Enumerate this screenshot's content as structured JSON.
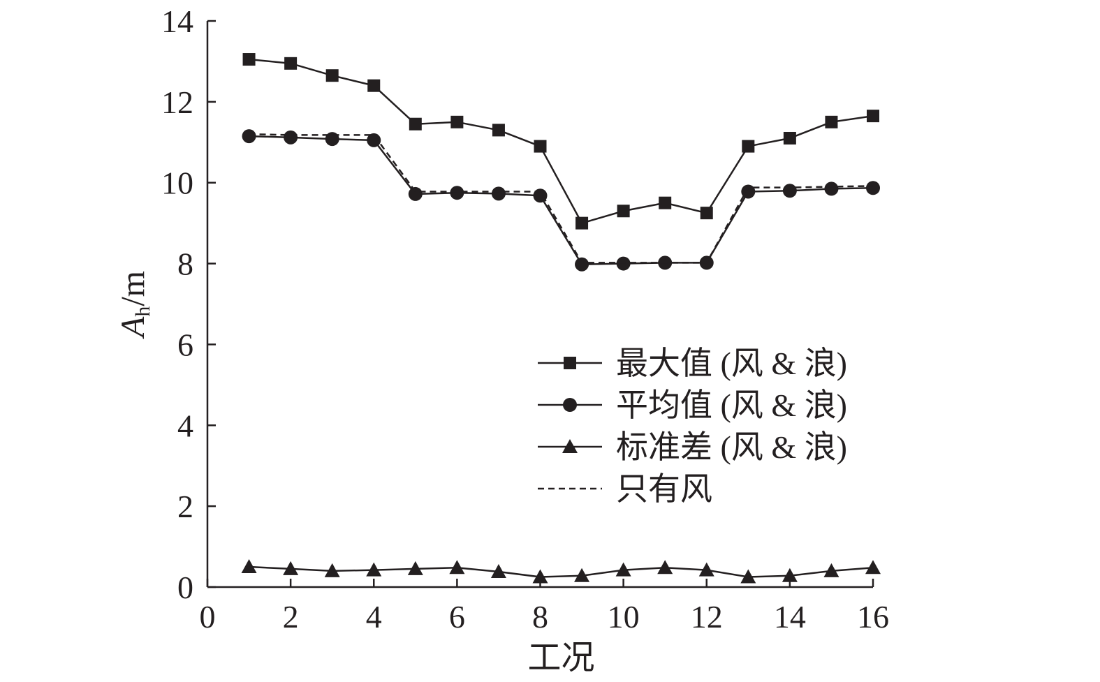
{
  "chart_data": {
    "type": "line",
    "xlabel": "工况",
    "ylabel": {
      "main": "A",
      "sub": "h",
      "unit": "/m"
    },
    "xlim": [
      0,
      16
    ],
    "ylim": [
      0,
      14
    ],
    "x_ticks": [
      0,
      2,
      4,
      6,
      8,
      10,
      12,
      14,
      16
    ],
    "y_ticks": [
      0,
      2,
      4,
      6,
      8,
      10,
      12,
      14
    ],
    "grid": false,
    "legend_position": "right-middle",
    "x": [
      1,
      2,
      3,
      4,
      5,
      6,
      7,
      8,
      9,
      10,
      11,
      12,
      13,
      14,
      15,
      16
    ],
    "series": [
      {
        "name": "最大值 (风 & 浪)",
        "marker": "square",
        "line": "solid",
        "values": [
          13.05,
          12.95,
          12.65,
          12.4,
          11.45,
          11.5,
          11.3,
          10.9,
          9.0,
          9.3,
          9.5,
          9.25,
          10.9,
          11.1,
          11.5,
          11.65
        ]
      },
      {
        "name": "平均值 (风 & 浪)",
        "marker": "circle",
        "line": "solid",
        "values": [
          11.15,
          11.12,
          11.08,
          11.05,
          9.72,
          9.75,
          9.73,
          9.68,
          7.98,
          8.0,
          8.02,
          8.02,
          9.78,
          9.8,
          9.85,
          9.87
        ]
      },
      {
        "name": "标准差 (风 & 浪)",
        "marker": "triangle",
        "line": "solid",
        "values": [
          0.5,
          0.45,
          0.4,
          0.42,
          0.45,
          0.48,
          0.38,
          0.25,
          0.28,
          0.42,
          0.48,
          0.42,
          0.25,
          0.28,
          0.4,
          0.48
        ]
      },
      {
        "name": "只有风",
        "marker": "none",
        "line": "dashed",
        "values": [
          11.2,
          11.18,
          11.18,
          11.18,
          9.78,
          9.78,
          9.78,
          9.78,
          8.02,
          8.02,
          8.02,
          8.02,
          9.88,
          9.88,
          9.9,
          9.92
        ]
      }
    ],
    "colors": {
      "ink": "#231f20",
      "background": "#ffffff"
    }
  }
}
